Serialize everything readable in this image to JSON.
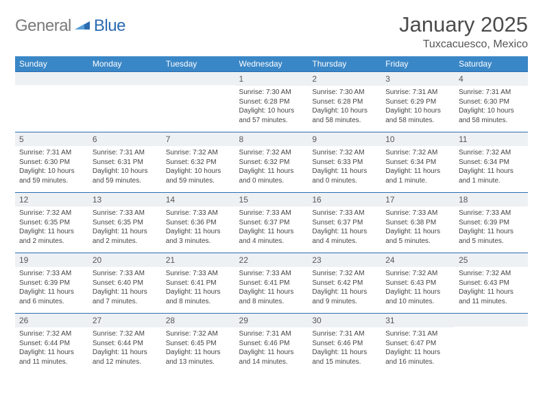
{
  "brand": {
    "part1": "General",
    "part2": "Blue"
  },
  "title": "January 2025",
  "location": "Tuxcacuesco, Mexico",
  "colors": {
    "header_bg": "#3a87c7",
    "header_fg": "#ffffff",
    "daynum_bg": "#eef1f4",
    "border": "#2a6bb0",
    "text": "#333333",
    "brand_gray": "#7a7a7a",
    "brand_blue": "#2a6bb0"
  },
  "weekdays": [
    "Sunday",
    "Monday",
    "Tuesday",
    "Wednesday",
    "Thursday",
    "Friday",
    "Saturday"
  ],
  "weeks": [
    [
      null,
      null,
      null,
      {
        "n": "1",
        "sr": "7:30 AM",
        "ss": "6:28 PM",
        "dl": "10 hours and 57 minutes."
      },
      {
        "n": "2",
        "sr": "7:30 AM",
        "ss": "6:28 PM",
        "dl": "10 hours and 58 minutes."
      },
      {
        "n": "3",
        "sr": "7:31 AM",
        "ss": "6:29 PM",
        "dl": "10 hours and 58 minutes."
      },
      {
        "n": "4",
        "sr": "7:31 AM",
        "ss": "6:30 PM",
        "dl": "10 hours and 58 minutes."
      }
    ],
    [
      {
        "n": "5",
        "sr": "7:31 AM",
        "ss": "6:30 PM",
        "dl": "10 hours and 59 minutes."
      },
      {
        "n": "6",
        "sr": "7:31 AM",
        "ss": "6:31 PM",
        "dl": "10 hours and 59 minutes."
      },
      {
        "n": "7",
        "sr": "7:32 AM",
        "ss": "6:32 PM",
        "dl": "10 hours and 59 minutes."
      },
      {
        "n": "8",
        "sr": "7:32 AM",
        "ss": "6:32 PM",
        "dl": "11 hours and 0 minutes."
      },
      {
        "n": "9",
        "sr": "7:32 AM",
        "ss": "6:33 PM",
        "dl": "11 hours and 0 minutes."
      },
      {
        "n": "10",
        "sr": "7:32 AM",
        "ss": "6:34 PM",
        "dl": "11 hours and 1 minute."
      },
      {
        "n": "11",
        "sr": "7:32 AM",
        "ss": "6:34 PM",
        "dl": "11 hours and 1 minute."
      }
    ],
    [
      {
        "n": "12",
        "sr": "7:32 AM",
        "ss": "6:35 PM",
        "dl": "11 hours and 2 minutes."
      },
      {
        "n": "13",
        "sr": "7:33 AM",
        "ss": "6:35 PM",
        "dl": "11 hours and 2 minutes."
      },
      {
        "n": "14",
        "sr": "7:33 AM",
        "ss": "6:36 PM",
        "dl": "11 hours and 3 minutes."
      },
      {
        "n": "15",
        "sr": "7:33 AM",
        "ss": "6:37 PM",
        "dl": "11 hours and 4 minutes."
      },
      {
        "n": "16",
        "sr": "7:33 AM",
        "ss": "6:37 PM",
        "dl": "11 hours and 4 minutes."
      },
      {
        "n": "17",
        "sr": "7:33 AM",
        "ss": "6:38 PM",
        "dl": "11 hours and 5 minutes."
      },
      {
        "n": "18",
        "sr": "7:33 AM",
        "ss": "6:39 PM",
        "dl": "11 hours and 5 minutes."
      }
    ],
    [
      {
        "n": "19",
        "sr": "7:33 AM",
        "ss": "6:39 PM",
        "dl": "11 hours and 6 minutes."
      },
      {
        "n": "20",
        "sr": "7:33 AM",
        "ss": "6:40 PM",
        "dl": "11 hours and 7 minutes."
      },
      {
        "n": "21",
        "sr": "7:33 AM",
        "ss": "6:41 PM",
        "dl": "11 hours and 8 minutes."
      },
      {
        "n": "22",
        "sr": "7:33 AM",
        "ss": "6:41 PM",
        "dl": "11 hours and 8 minutes."
      },
      {
        "n": "23",
        "sr": "7:32 AM",
        "ss": "6:42 PM",
        "dl": "11 hours and 9 minutes."
      },
      {
        "n": "24",
        "sr": "7:32 AM",
        "ss": "6:43 PM",
        "dl": "11 hours and 10 minutes."
      },
      {
        "n": "25",
        "sr": "7:32 AM",
        "ss": "6:43 PM",
        "dl": "11 hours and 11 minutes."
      }
    ],
    [
      {
        "n": "26",
        "sr": "7:32 AM",
        "ss": "6:44 PM",
        "dl": "11 hours and 11 minutes."
      },
      {
        "n": "27",
        "sr": "7:32 AM",
        "ss": "6:44 PM",
        "dl": "11 hours and 12 minutes."
      },
      {
        "n": "28",
        "sr": "7:32 AM",
        "ss": "6:45 PM",
        "dl": "11 hours and 13 minutes."
      },
      {
        "n": "29",
        "sr": "7:31 AM",
        "ss": "6:46 PM",
        "dl": "11 hours and 14 minutes."
      },
      {
        "n": "30",
        "sr": "7:31 AM",
        "ss": "6:46 PM",
        "dl": "11 hours and 15 minutes."
      },
      {
        "n": "31",
        "sr": "7:31 AM",
        "ss": "6:47 PM",
        "dl": "11 hours and 16 minutes."
      },
      null
    ]
  ],
  "labels": {
    "sunrise": "Sunrise:",
    "sunset": "Sunset:",
    "daylight": "Daylight:"
  }
}
